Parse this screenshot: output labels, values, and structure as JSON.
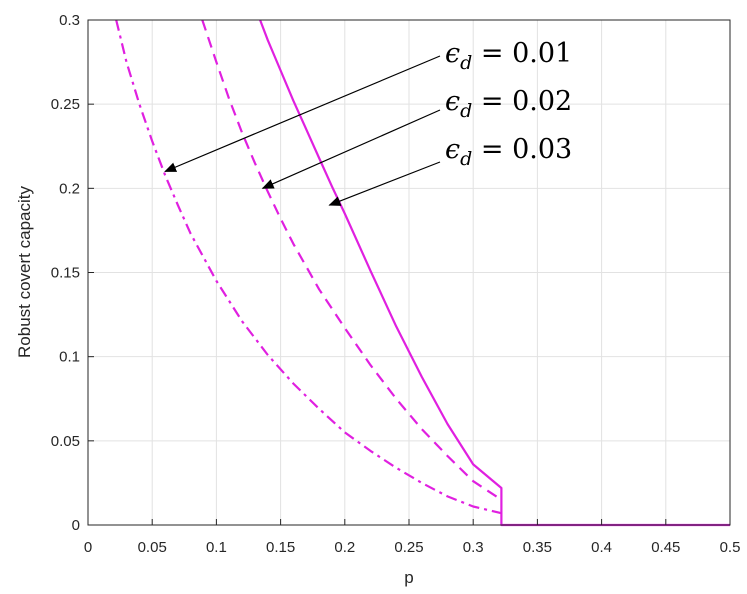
{
  "chart_data": {
    "type": "line",
    "title": "",
    "xlabel": "p",
    "ylabel": "Robust covert capacity",
    "xlim": [
      0,
      0.5
    ],
    "ylim": [
      0,
      0.3
    ],
    "grid": true,
    "x_ticks": [
      0,
      0.05,
      0.1,
      0.15,
      0.2,
      0.25,
      0.3,
      0.35,
      0.4,
      0.45,
      0.5
    ],
    "x_tick_labels": [
      "0",
      "0.05",
      "0.1",
      "0.15",
      "0.2",
      "0.25",
      "0.3",
      "0.35",
      "0.4",
      "0.45",
      "0.5"
    ],
    "y_ticks": [
      0,
      0.05,
      0.1,
      0.15,
      0.2,
      0.25,
      0.3
    ],
    "y_tick_labels": [
      "0",
      "0.05",
      "0.1",
      "0.15",
      "0.2",
      "0.25",
      "0.3"
    ],
    "line_color": "#e020e0",
    "series": [
      {
        "name": "ε_d = 0.01",
        "style": "dashdot",
        "x": [
          0.022,
          0.03,
          0.04,
          0.05,
          0.06,
          0.07,
          0.08,
          0.1,
          0.12,
          0.14,
          0.16,
          0.18,
          0.2,
          0.22,
          0.24,
          0.26,
          0.28,
          0.3,
          0.322
        ],
        "y": [
          0.3,
          0.275,
          0.25,
          0.228,
          0.208,
          0.19,
          0.173,
          0.145,
          0.121,
          0.101,
          0.084,
          0.069,
          0.055,
          0.044,
          0.034,
          0.025,
          0.017,
          0.011,
          0.007
        ]
      },
      {
        "name": "ε_d = 0.02",
        "style": "dashed",
        "x": [
          0.089,
          0.1,
          0.11,
          0.12,
          0.13,
          0.14,
          0.15,
          0.16,
          0.18,
          0.2,
          0.22,
          0.24,
          0.26,
          0.28,
          0.3,
          0.322
        ],
        "y": [
          0.3,
          0.275,
          0.253,
          0.233,
          0.215,
          0.198,
          0.182,
          0.167,
          0.14,
          0.117,
          0.095,
          0.075,
          0.057,
          0.041,
          0.026,
          0.015
        ]
      },
      {
        "name": "ε_d = 0.03",
        "style": "solid",
        "x": [
          0.134,
          0.14,
          0.15,
          0.16,
          0.17,
          0.18,
          0.19,
          0.2,
          0.22,
          0.24,
          0.26,
          0.28,
          0.3,
          0.322,
          0.322,
          0.5
        ],
        "y": [
          0.3,
          0.288,
          0.27,
          0.252,
          0.235,
          0.218,
          0.201,
          0.185,
          0.151,
          0.118,
          0.088,
          0.06,
          0.036,
          0.022,
          0,
          0
        ]
      }
    ],
    "annotations": [
      {
        "eps": "ϵ",
        "sub": "d",
        "text": " = 0.01",
        "target": [
          0.06,
          0.21
        ]
      },
      {
        "eps": "ϵ",
        "sub": "d",
        "text": " = 0.02",
        "target": [
          0.136,
          0.2
        ]
      },
      {
        "eps": "ϵ",
        "sub": "d",
        "text": " = 0.03",
        "target": [
          0.188,
          0.19
        ]
      }
    ]
  }
}
